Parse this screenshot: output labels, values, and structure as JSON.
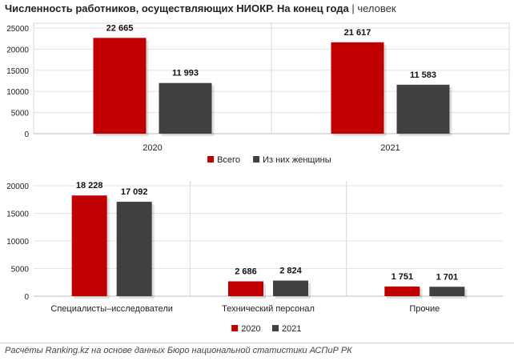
{
  "title": "Численность работников, осуществляющих НИОКР. На конец года",
  "unit": "| человек",
  "colors": {
    "red": "#c00000",
    "dark": "#404040"
  },
  "chart_data": [
    {
      "type": "bar",
      "categories": [
        "2020",
        "2021"
      ],
      "series": [
        {
          "name": "Всего",
          "values": [
            22665,
            21617
          ]
        },
        {
          "name": "Из них женщины",
          "values": [
            11993,
            11583
          ]
        }
      ],
      "data_labels": [
        [
          "22 665",
          "21 617"
        ],
        [
          "11 993",
          "11 583"
        ]
      ],
      "yticks": [
        "0",
        "5000",
        "10000",
        "15000",
        "20000",
        "25000"
      ],
      "ylim": [
        0,
        25000
      ],
      "legend": "bottom",
      "grid": true
    },
    {
      "type": "bar",
      "categories": [
        "Специалисты–исследователи",
        "Технический персонал",
        "Прочие"
      ],
      "series": [
        {
          "name": "2020",
          "values": [
            18228,
            2686,
            1751
          ]
        },
        {
          "name": "2021",
          "values": [
            17092,
            2824,
            1701
          ]
        }
      ],
      "data_labels": [
        [
          "18 228",
          "2 686",
          "1 751"
        ],
        [
          "17 092",
          "2 824",
          "1 701"
        ]
      ],
      "yticks": [
        "0",
        "5000",
        "10000",
        "15000",
        "20000"
      ],
      "ylim": [
        0,
        20000
      ],
      "legend": "bottom",
      "grid": true
    }
  ],
  "source": "Расчёты Ranking.kz на основе данных Бюро национальной статистики АСПиР РК"
}
